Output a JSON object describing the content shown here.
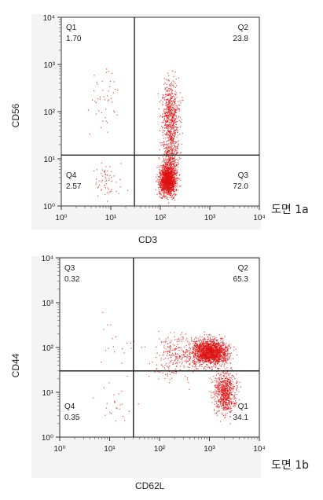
{
  "chart_data": [
    {
      "type": "scatter",
      "title": "",
      "xlabel": "CD3",
      "ylabel": "CD56",
      "xscale": "log",
      "yscale": "log",
      "xlim": [
        1,
        10000
      ],
      "ylim": [
        1,
        10000
      ],
      "gate": {
        "x": 30,
        "y": 12
      },
      "x_ticks": [
        "10⁰",
        "10¹",
        "10²",
        "10³",
        "10⁴"
      ],
      "y_ticks": [
        "10⁰",
        "10¹",
        "10²",
        "10³",
        "10⁴"
      ],
      "quadrants": [
        {
          "name": "Q1",
          "value": "1.70",
          "position": "top-left"
        },
        {
          "name": "Q2",
          "value": "23.8",
          "position": "top-right"
        },
        {
          "name": "Q3",
          "value": "72.0",
          "position": "bottom-right"
        },
        {
          "name": "Q4",
          "value": "2.57",
          "position": "bottom-left"
        }
      ],
      "point_color": "#dd1111",
      "figure_label": "도면 1a"
    },
    {
      "type": "scatter",
      "title": "",
      "xlabel": "CD62L",
      "ylabel": "CD44",
      "xscale": "log",
      "yscale": "log",
      "xlim": [
        1,
        10000
      ],
      "ylim": [
        1,
        10000
      ],
      "gate": {
        "x": 30,
        "y": 30
      },
      "x_ticks": [
        "10⁰",
        "10¹",
        "10²",
        "10³",
        "10⁴"
      ],
      "y_ticks": [
        "10⁰",
        "10¹",
        "10²",
        "10³",
        "10⁴"
      ],
      "quadrants": [
        {
          "name": "Q3",
          "value": "0.32",
          "position": "top-left"
        },
        {
          "name": "Q2",
          "value": "65.3",
          "position": "top-right"
        },
        {
          "name": "Q1",
          "value": "34.1",
          "position": "bottom-right"
        },
        {
          "name": "Q4",
          "value": "0.35",
          "position": "bottom-left"
        }
      ],
      "point_color": "#dd1111",
      "figure_label": "도면 1b"
    }
  ]
}
